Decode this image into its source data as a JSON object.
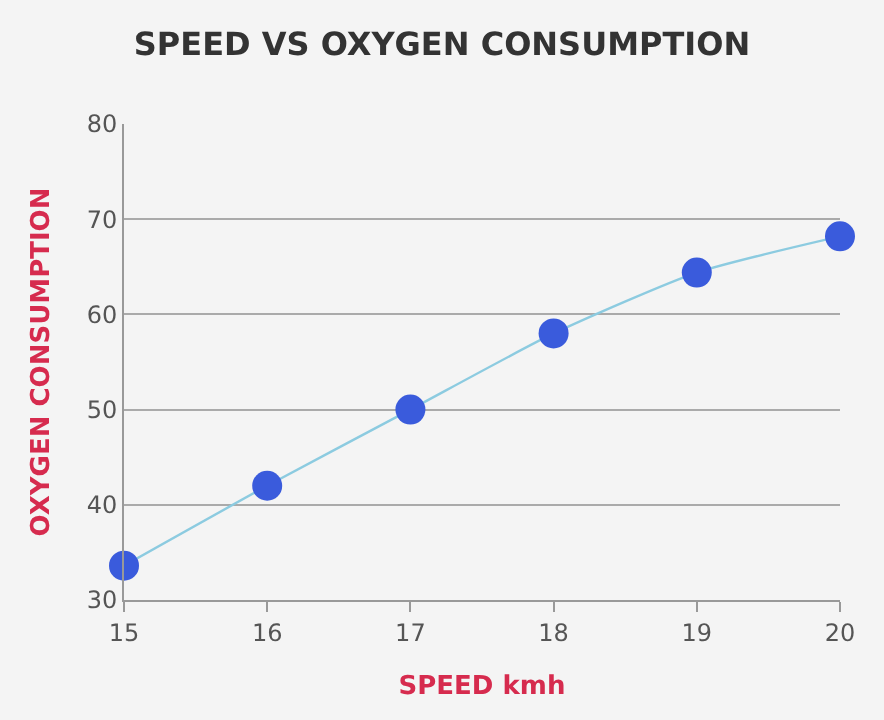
{
  "chart_data": {
    "type": "line",
    "title": "SPEED VS OXYGEN CONSUMPTION",
    "xlabel": "SPEED kmh",
    "ylabel": "OXYGEN CONSUMPTION",
    "x": [
      15,
      16,
      17,
      18,
      19,
      20
    ],
    "series": [
      {
        "color": "#8ccbe0",
        "values": [
          33.6,
          42,
          50,
          58,
          64.4,
          68.2
        ]
      }
    ],
    "xlim": [
      15,
      20
    ],
    "xticks": [
      15,
      16,
      17,
      18,
      19,
      20
    ],
    "ylim": [
      30,
      80
    ],
    "yticks": [
      30,
      40,
      50,
      60,
      70,
      80
    ],
    "grid": "y",
    "marker": "circle",
    "line_style": "solid"
  }
}
